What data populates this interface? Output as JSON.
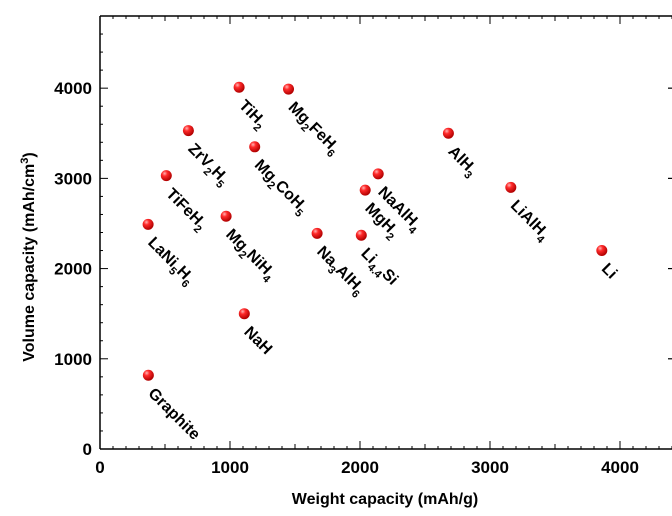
{
  "chart_data": {
    "type": "scatter",
    "title": "",
    "xlabel": "Weight capacity (mAh/g)",
    "ylabel": "Volume capacity (mAh/cm³)",
    "xlim": [
      0,
      4400
    ],
    "ylim": [
      0,
      4800
    ],
    "x_ticks": [
      0,
      1000,
      2000,
      3000,
      4000
    ],
    "y_ticks": [
      0,
      1000,
      2000,
      3000,
      4000
    ],
    "grid": false,
    "marker_color": "#e8000b",
    "points": [
      {
        "label": "Graphite",
        "label_parts": [
          [
            "Graphite",
            ""
          ]
        ],
        "x": 372,
        "y": 818
      },
      {
        "label": "LaNi5H6",
        "label_parts": [
          [
            "LaNi",
            ""
          ],
          [
            "5",
            "sub"
          ],
          [
            "H",
            ""
          ],
          [
            "6",
            "sub"
          ]
        ],
        "x": 370,
        "y": 2490
      },
      {
        "label": "TiFeH2",
        "label_parts": [
          [
            "TiFeH",
            ""
          ],
          [
            "2",
            "sub"
          ]
        ],
        "x": 510,
        "y": 3030
      },
      {
        "label": "ZrV2H5",
        "label_parts": [
          [
            "ZrV",
            ""
          ],
          [
            "2",
            "sub"
          ],
          [
            "H",
            ""
          ],
          [
            "5",
            "sub"
          ]
        ],
        "x": 680,
        "y": 3530
      },
      {
        "label": "Mg2NiH4",
        "label_parts": [
          [
            "Mg",
            ""
          ],
          [
            "2",
            "sub"
          ],
          [
            "NiH",
            ""
          ],
          [
            "4",
            "sub"
          ]
        ],
        "x": 970,
        "y": 2580
      },
      {
        "label": "TiH2",
        "label_parts": [
          [
            "TiH",
            ""
          ],
          [
            "2",
            "sub"
          ]
        ],
        "x": 1070,
        "y": 4010
      },
      {
        "label": "NaH",
        "label_parts": [
          [
            "NaH",
            ""
          ]
        ],
        "x": 1110,
        "y": 1500
      },
      {
        "label": "Mg2CoH5",
        "label_parts": [
          [
            "Mg",
            ""
          ],
          [
            "2",
            "sub"
          ],
          [
            "CoH",
            ""
          ],
          [
            "5",
            "sub"
          ]
        ],
        "x": 1190,
        "y": 3350
      },
      {
        "label": "Mg2FeH6",
        "label_parts": [
          [
            "Mg",
            ""
          ],
          [
            "2",
            "sub"
          ],
          [
            "FeH",
            ""
          ],
          [
            "6",
            "sub"
          ]
        ],
        "x": 1450,
        "y": 3990
      },
      {
        "label": "Na3AlH6",
        "label_parts": [
          [
            "Na",
            ""
          ],
          [
            "3",
            "sub"
          ],
          [
            "AlH",
            ""
          ],
          [
            "6",
            "sub"
          ]
        ],
        "x": 1670,
        "y": 2390
      },
      {
        "label": "Li4.4Si",
        "label_parts": [
          [
            "Li",
            ""
          ],
          [
            "4.4",
            "sub"
          ],
          [
            "Si",
            ""
          ]
        ],
        "x": 2010,
        "y": 2370
      },
      {
        "label": "MgH2",
        "label_parts": [
          [
            "MgH",
            ""
          ],
          [
            "2",
            "sub"
          ]
        ],
        "x": 2040,
        "y": 2870
      },
      {
        "label": "NaAlH4",
        "label_parts": [
          [
            "NaAlH",
            ""
          ],
          [
            "4",
            "sub"
          ]
        ],
        "x": 2140,
        "y": 3050
      },
      {
        "label": "AlH3",
        "label_parts": [
          [
            "AlH",
            ""
          ],
          [
            "3",
            "sub"
          ]
        ],
        "x": 2680,
        "y": 3500
      },
      {
        "label": "LiAlH4",
        "label_parts": [
          [
            "LiAlH",
            ""
          ],
          [
            "4",
            "sub"
          ]
        ],
        "x": 3160,
        "y": 2900
      },
      {
        "label": "Li",
        "label_parts": [
          [
            "Li",
            ""
          ]
        ],
        "x": 3860,
        "y": 2200
      }
    ]
  }
}
